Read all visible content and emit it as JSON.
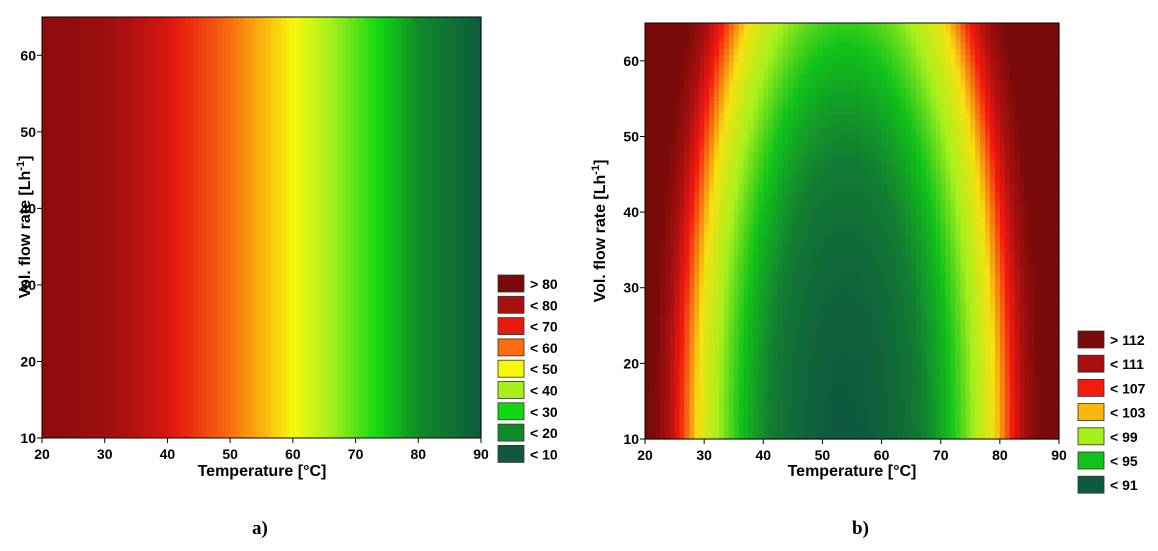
{
  "chart_data": [
    {
      "type": "heatmap",
      "panel_label": "a)",
      "xlabel": "Temperature [°C]",
      "ylabel_main": "Vol. flow rate  [Lh",
      "ylabel_sup": "-1",
      "ylabel_end": "]",
      "xlim": [
        20,
        90
      ],
      "ylim": [
        10,
        65
      ],
      "xticks": [
        "20",
        "30",
        "40",
        "50",
        "60",
        "70",
        "80",
        "90"
      ],
      "yticks": [
        "10",
        "20",
        "30",
        "40",
        "50",
        "60"
      ],
      "x_values": [
        20,
        30,
        40,
        50,
        60,
        70,
        80,
        90
      ],
      "z_values": [
        85,
        82,
        74,
        60,
        45,
        28,
        12,
        5
      ],
      "z_varies_with_y": false,
      "legend": [
        {
          "label": "> 80",
          "color": "#7a0a0a"
        },
        {
          "label": "< 80",
          "color": "#a81010"
        },
        {
          "label": "< 70",
          "color": "#e61a10"
        },
        {
          "label": "< 60",
          "color": "#f96d10"
        },
        {
          "label": "< 50",
          "color": "#f8f80a"
        },
        {
          "label": "< 40",
          "color": "#a8f01c"
        },
        {
          "label": "< 30",
          "color": "#12d812"
        },
        {
          "label": "< 20",
          "color": "#118a2a"
        },
        {
          "label": "< 10",
          "color": "#0f5a3e"
        }
      ],
      "legend_position": "bottom-right"
    },
    {
      "type": "heatmap",
      "panel_label": "b)",
      "xlabel": "Temperature [°C]",
      "ylabel_main": "Vol. flow rate  [Lh",
      "ylabel_sup": "-1",
      "ylabel_end": "]",
      "xlim": [
        20,
        90
      ],
      "ylim": [
        10,
        65
      ],
      "xticks": [
        "20",
        "30",
        "40",
        "50",
        "60",
        "70",
        "80",
        "90"
      ],
      "yticks": [
        "10",
        "20",
        "30",
        "40",
        "50",
        "60"
      ],
      "z_min_center": {
        "x": 54,
        "y": 10,
        "z": 88
      },
      "legend": [
        {
          "label": "> 112",
          "color": "#7a0a0a"
        },
        {
          "label": "< 111",
          "color": "#a81010"
        },
        {
          "label": "< 107",
          "color": "#f51a10"
        },
        {
          "label": "< 103",
          "color": "#f8b810"
        },
        {
          "label": "< 99",
          "color": "#a8f01c"
        },
        {
          "label": "< 95",
          "color": "#12c21a"
        },
        {
          "label": "< 91",
          "color": "#0f5a3e"
        }
      ],
      "legend_position": "bottom-right"
    }
  ]
}
